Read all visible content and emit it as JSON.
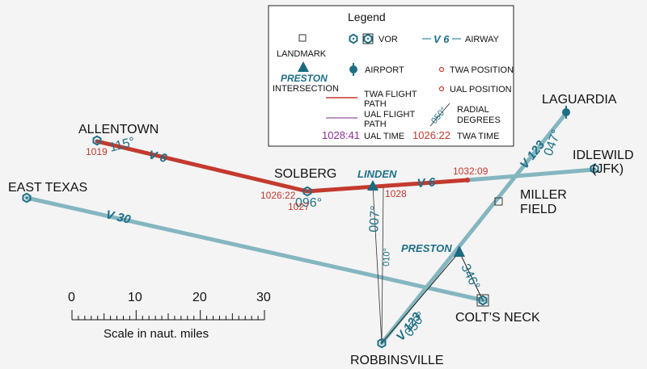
{
  "colors": {
    "airway": "#84b6c0",
    "twa_path": "#c43a2e",
    "ual_path": "#7a2e8a",
    "vor": "#1e6f86",
    "intersection": "#1b6a80",
    "label_red": "#c0392b",
    "ual_time": "#8a2f96"
  },
  "places": {
    "allentown": "ALLENTOWN",
    "east_texas": "EAST TEXAS",
    "solberg": "SOLBERG",
    "laguardia": "LAGUARDIA",
    "idlewild_1": "IDLEWILD",
    "idlewild_2": "(JFK)",
    "miller_1": "MILLER",
    "miller_2": "FIELD",
    "colts_neck": "COLT’S NECK",
    "robbinsville": "ROBBINSVILLE"
  },
  "intersections": {
    "linden": "LINDEN",
    "preston": "PRESTON"
  },
  "airways": {
    "v6_a": "V 6",
    "v6_b": "V 6",
    "v30": "V 30",
    "v123_a": "V 123",
    "v123_b": "V 123"
  },
  "radials": {
    "r115": "115°",
    "r096": "096°",
    "r047": "047°",
    "r007": "007°",
    "r010": "010°",
    "r346": "346°",
    "r050": "050°"
  },
  "times": {
    "t1019": "1019",
    "t1026_22": "1026:22",
    "t1027": "1027",
    "t1028": "1028",
    "t1032_09": "1032:09"
  },
  "legend": {
    "title": "Legend",
    "vor": "VOR",
    "airway_sample": "V 6",
    "airway": "AIRWAY",
    "landmark": "LANDMARK",
    "airport": "AIRPORT",
    "twa_position": "TWA POSITION",
    "preston_sample": "PRESTON",
    "intersection": "INTERSECTION",
    "ual_position": "UAL POSITION",
    "twa_path_1": "TWA FLIGHT",
    "twa_path_2": "PATH",
    "ual_path_1": "UAL FLIGHT",
    "ual_path_2": "PATH",
    "radial_sample": "050°",
    "radial_1": "RADIAL",
    "radial_2": "DEGREES",
    "ual_time_sample": "1028:41",
    "ual_time": "UAL TIME",
    "twa_time_sample": "1026:22",
    "twa_time": "TWA TIME"
  },
  "scale": {
    "ticks": [
      "0",
      "10",
      "20",
      "30"
    ],
    "caption": "Scale in naut. miles"
  }
}
